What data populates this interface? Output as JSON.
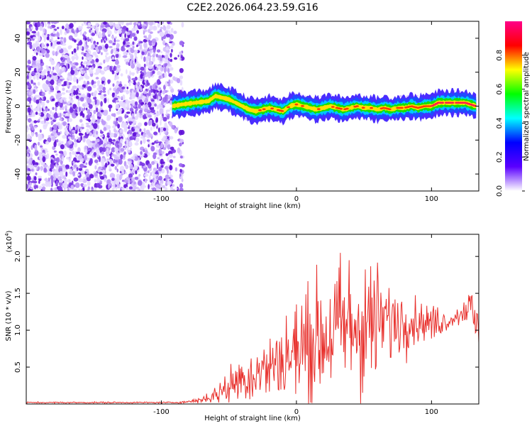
{
  "title": "C2E2.2026.064.23.59.G16",
  "chart_data": [
    {
      "type": "heatmap",
      "xlabel": "Height of straight line (km)",
      "ylabel": "Frequency (Hz)",
      "xlim": [
        -200,
        135
      ],
      "ylim": [
        -50,
        50
      ],
      "x_ticks": [
        -100,
        0,
        100
      ],
      "x_tick_labels": [
        "-100",
        "0",
        "100"
      ],
      "y_ticks": [
        -40,
        -20,
        0,
        20,
        40
      ],
      "y_tick_labels": [
        "-40",
        "-20",
        "0",
        "20",
        "40"
      ],
      "noise_region_x": [
        -200,
        -84
      ],
      "signal_trace": {
        "x": [
          -92,
          -85,
          -75,
          -65,
          -60,
          -55,
          -50,
          -45,
          -40,
          -35,
          -30,
          -25,
          -20,
          -15,
          -10,
          -5,
          0,
          5,
          10,
          15,
          20,
          25,
          30,
          35,
          40,
          45,
          50,
          55,
          60,
          65,
          70,
          75,
          80,
          85,
          90,
          95,
          100,
          105,
          110,
          115,
          120,
          125,
          133
        ],
        "freq_hz": [
          0,
          1,
          2,
          3,
          6,
          5,
          4,
          2,
          0,
          -2,
          -3,
          -2,
          -1,
          -2,
          -3,
          0,
          1,
          0,
          -1,
          -2,
          -1,
          0,
          -1,
          -2,
          -1,
          0,
          -1,
          -1,
          -2,
          -1,
          -2,
          -1,
          -1,
          0,
          -1,
          0,
          0,
          2,
          2,
          2,
          2,
          2,
          0
        ]
      },
      "colorbar": {
        "label": "Normalized spectral amplitude",
        "range": [
          0,
          1
        ],
        "ticks": [
          0.0,
          0.2,
          0.4,
          0.6,
          0.8
        ],
        "tick_labels": [
          "0.0",
          "0.2",
          "0.4",
          "0.6",
          "0.8"
        ],
        "colors": [
          "#ffffff",
          "#5a00ff",
          "#0000ff",
          "#00ffff",
          "#00ff00",
          "#ffff00",
          "#ff0000",
          "#ff0088"
        ]
      }
    },
    {
      "type": "line",
      "xlabel": "Height of straight line (km)",
      "ylabel": "SNR (10 * v/v)",
      "multiplier_label": "(x10",
      "multiplier_exp": "4",
      "multiplier_close": ")",
      "xlim": [
        -200,
        135
      ],
      "ylim": [
        0,
        2.3
      ],
      "x_ticks": [
        -100,
        0,
        100
      ],
      "x_tick_labels": [
        "-100",
        "0",
        "100"
      ],
      "y_ticks": [
        0.5,
        1.0,
        1.5,
        2.0
      ],
      "y_tick_labels": [
        "0.5",
        "1.0",
        "1.5",
        "2.0"
      ],
      "series": [
        {
          "name": "SNR",
          "color": "#e8302c",
          "x_start": -200,
          "x_step": 0.5,
          "envelope_x": [
            -200,
            -90,
            -80,
            -70,
            -60,
            -50,
            -40,
            -30,
            -20,
            -10,
            0,
            10,
            20,
            30,
            40,
            50,
            60,
            70,
            80,
            90,
            100,
            110,
            120,
            125,
            130,
            133
          ],
          "envelope_mean": [
            0.02,
            0.02,
            0.03,
            0.06,
            0.12,
            0.25,
            0.35,
            0.42,
            0.5,
            0.6,
            0.72,
            0.82,
            0.92,
            1.0,
            1.05,
            1.08,
            1.1,
            1.12,
            1.13,
            1.12,
            1.1,
            1.12,
            1.2,
            1.3,
            1.3,
            1.0
          ],
          "envelope_spread": [
            0.01,
            0.01,
            0.02,
            0.05,
            0.12,
            0.3,
            0.35,
            0.4,
            0.45,
            0.6,
            0.75,
            0.8,
            0.9,
            1.0,
            1.1,
            1.0,
            0.8,
            0.6,
            0.4,
            0.3,
            0.25,
            0.15,
            0.15,
            0.2,
            0.25,
            0.4
          ]
        }
      ]
    }
  ]
}
